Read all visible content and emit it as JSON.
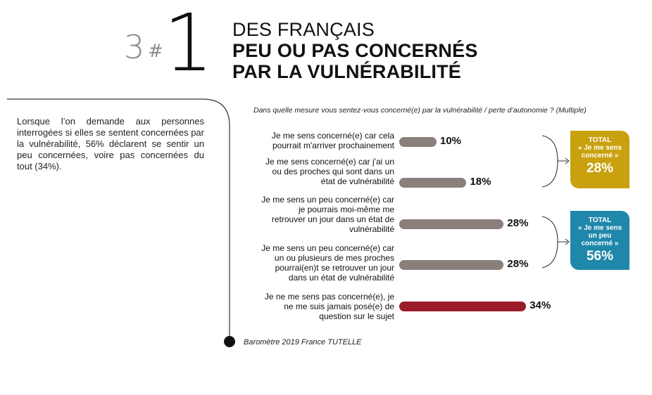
{
  "header": {
    "num_small": "3",
    "hash": "#",
    "num_big": "1",
    "line1": "DES FRANÇAIS",
    "line2": "PEU OU PAS CONCERNÉS",
    "line3": "PAR LA VULNÉRABILITÉ"
  },
  "intro_text": "Lorsque l’on demande aux personnes interrogées si elles se sentent concernées par la vulnérabilité, 56% déclarent se sentir un peu concernées, voire pas concernées du tout (34%).",
  "question": "Dans quelle mesure vous sentez-vous concerné(e) par la vulnérabilité / perte d’autonomie ? (Multiple)",
  "source": "Baromètre 2019 France TUTELLE",
  "colors": {
    "bar_default": "#8a7f7b",
    "bar_highlight": "#9b1b2b",
    "total_gold": "#c9a10f",
    "total_blue": "#1f87aa"
  },
  "chart_data": {
    "type": "bar",
    "orientation": "horizontal",
    "categories": [
      "Je me sens concerné(e) car cela pourrait m'arriver prochainement",
      "Je me sens concerné(e) car j'ai un ou des proches qui sont dans un état de vulnérabilité",
      "Je me sens un peu concerné(e) car je pourrais moi-même me retrouver un jour dans un état de vulnérabilité",
      "Je me sens un peu concerné(e) car un ou plusieurs de mes proches pourrai(en)t se retrouver un jour dans un état de vulnérabilité",
      "Je ne me sens pas concerné(e), je ne me suis jamais posé(e) de question sur le sujet"
    ],
    "category_lines": [
      [
        "Je me sens concerné(e) car cela",
        "pourrait m'arriver prochainement"
      ],
      [
        "Je me sens concerné(e) car j'ai un",
        "ou des proches qui sont dans un",
        "état de vulnérabilité"
      ],
      [
        "Je me sens un peu concerné(e) car",
        "je pourrais moi-même me",
        "retrouver un jour dans un état de",
        "vulnérabilité"
      ],
      [
        "Je me sens un peu concerné(e) car",
        "un ou plusieurs de mes proches",
        "pourrai(en)t se retrouver un jour",
        "dans un état de vulnérabilité"
      ],
      [
        "Je ne me sens pas concerné(e), je",
        "ne me suis jamais posé(e) de",
        "question sur le sujet"
      ]
    ],
    "values": [
      10,
      18,
      28,
      28,
      34
    ],
    "value_labels": [
      "10%",
      "18%",
      "28%",
      "28%",
      "34%"
    ],
    "highlight_index": 4,
    "totals": [
      {
        "title": "TOTAL",
        "subtitle_lines": [
          "« Je me sens",
          "concerné »"
        ],
        "value": "28%",
        "color": "gold"
      },
      {
        "title": "TOTAL",
        "subtitle_lines": [
          "« Je me sens",
          "un peu",
          "concerné »"
        ],
        "value": "56%",
        "color": "blue"
      }
    ]
  }
}
